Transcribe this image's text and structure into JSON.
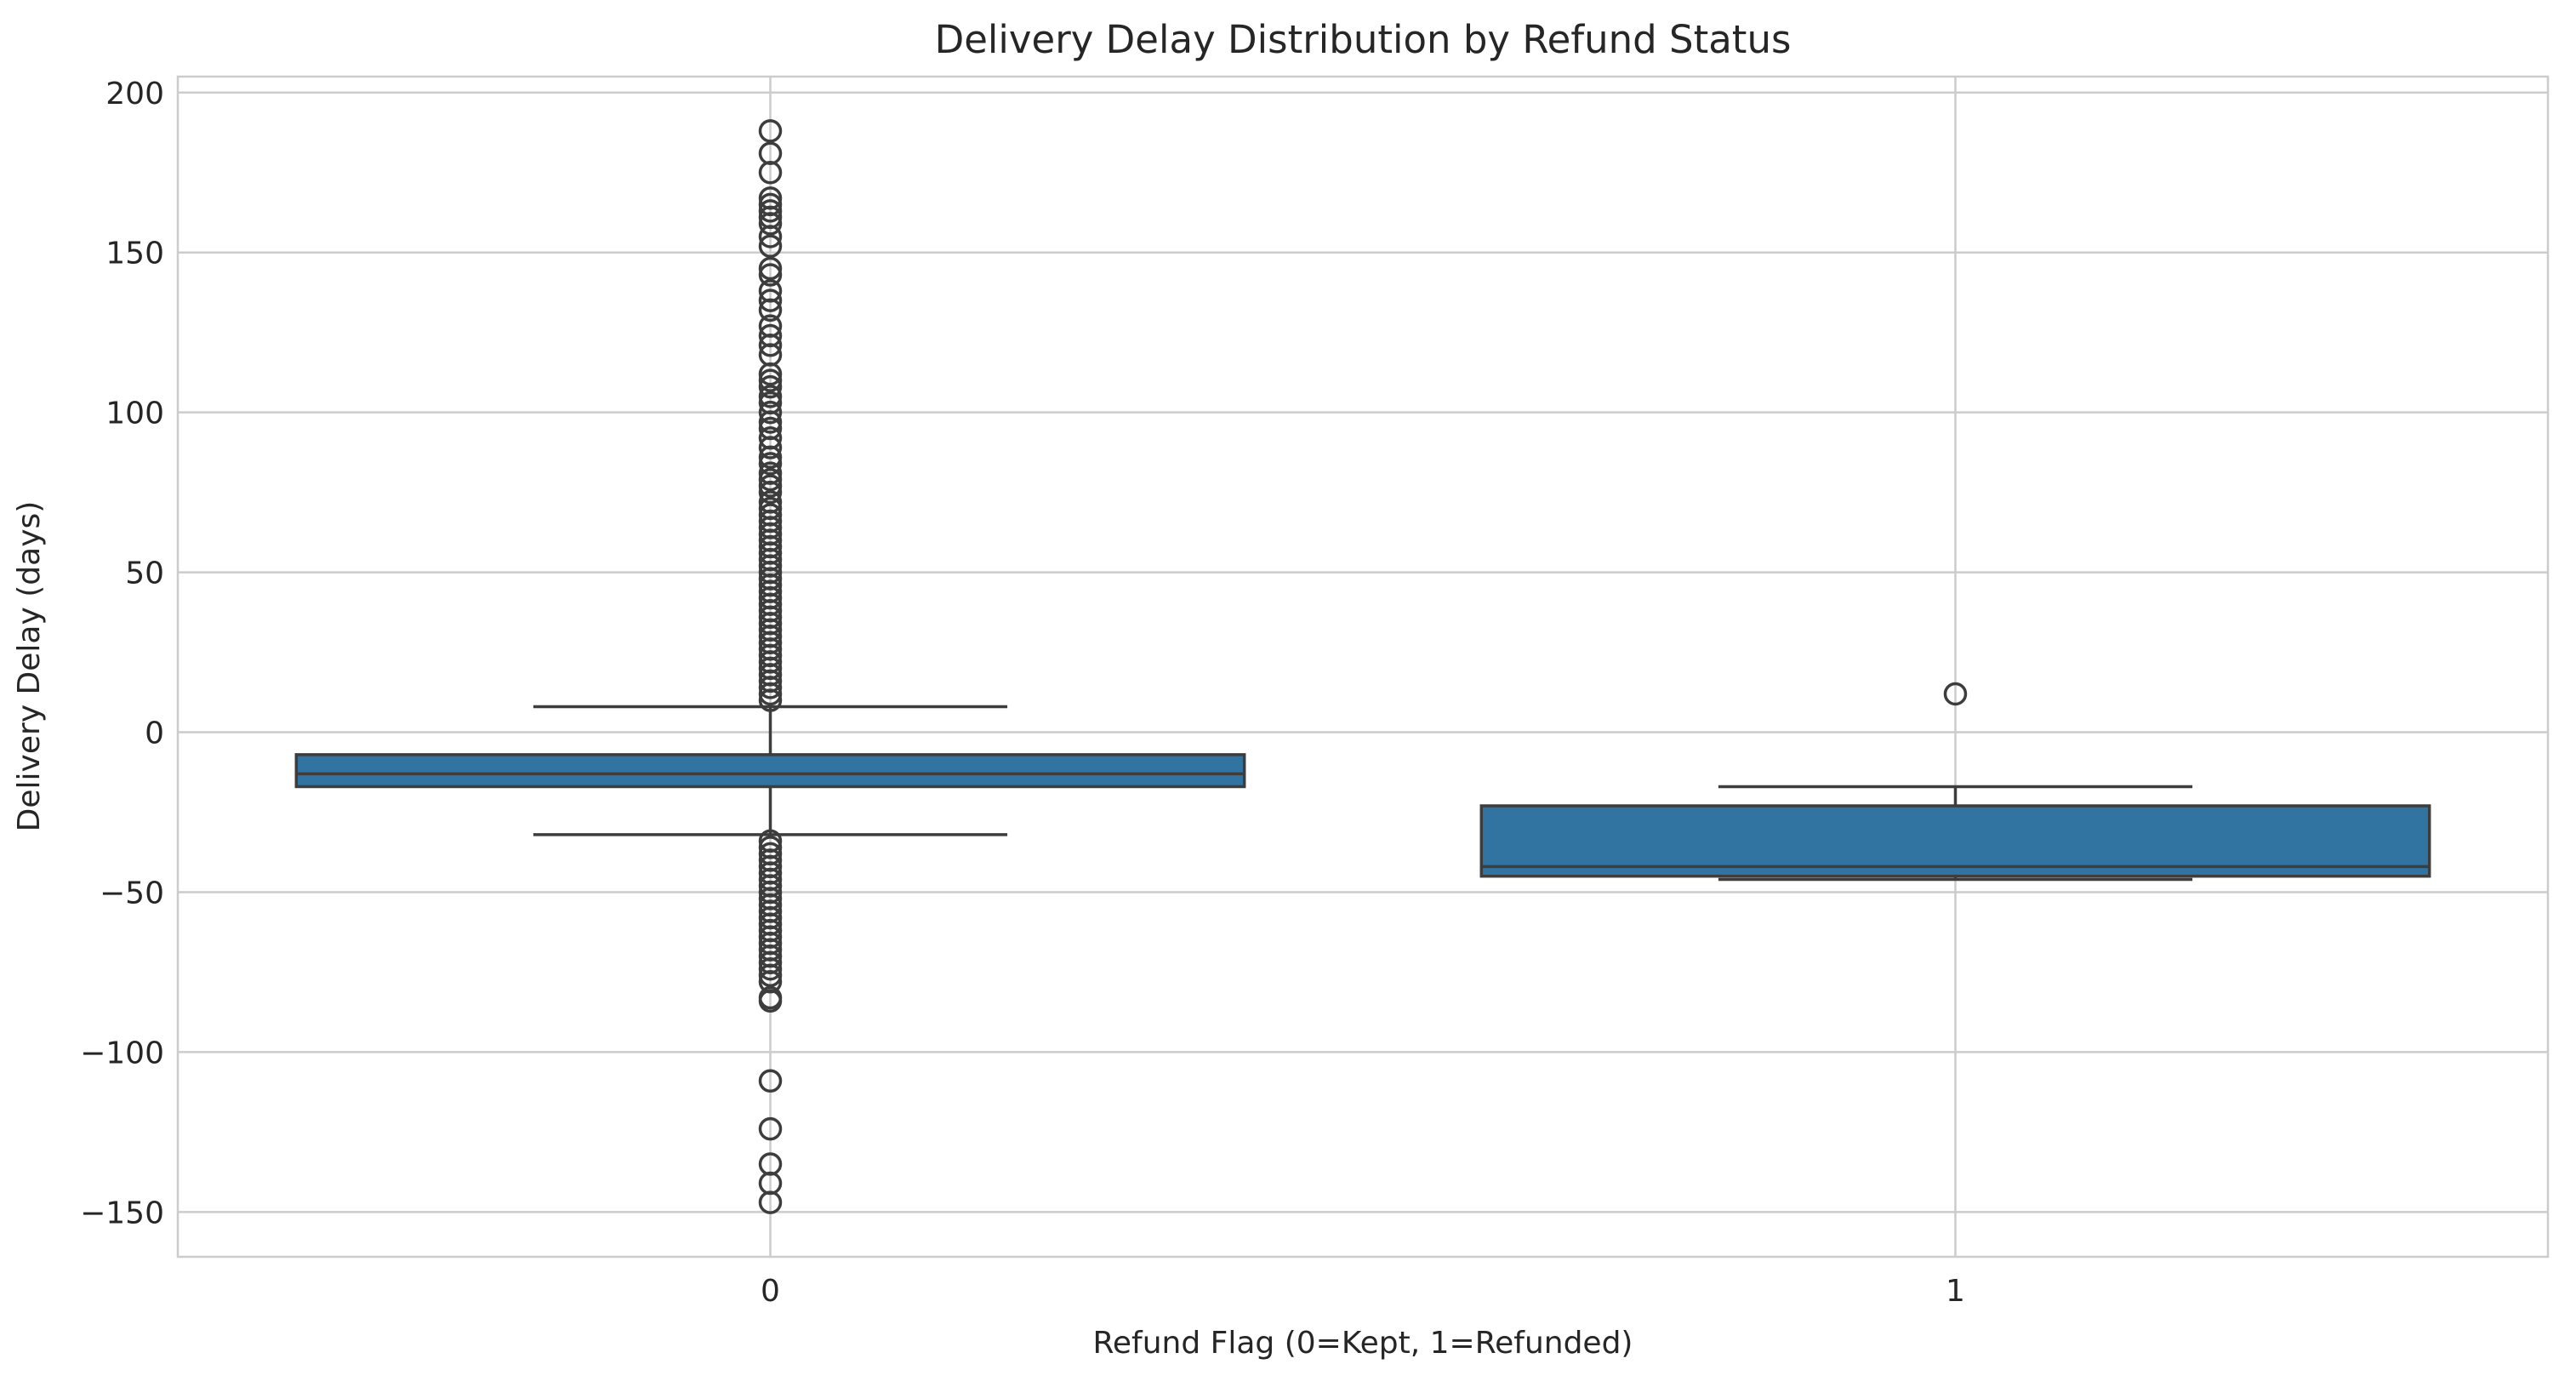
{
  "chart_data": {
    "type": "box",
    "title": "Delivery Delay Distribution by Refund Status",
    "xlabel": "Refund Flag (0=Kept, 1=Refunded)",
    "ylabel": "Delivery Delay (days)",
    "ylim": [
      -164,
      205
    ],
    "yticks": [
      200,
      150,
      100,
      50,
      0,
      -50,
      -100,
      -150
    ],
    "ytick_labels": [
      "200",
      "150",
      "100",
      "50",
      "0",
      "−50",
      "−100",
      "−150"
    ],
    "grid": true,
    "box_color": "#3274a1",
    "categories": [
      "0",
      "1"
    ],
    "boxes": [
      {
        "category": "0",
        "whisker_low": -32,
        "q1": -17,
        "median": -13,
        "q3": -7,
        "whisker_high": 8,
        "fliers": [
          188,
          181,
          175,
          167,
          165,
          163,
          161,
          159,
          155,
          152,
          145,
          143,
          138,
          135,
          132,
          127,
          124,
          121,
          118,
          112,
          110,
          108,
          105,
          103,
          100,
          97,
          95,
          92,
          89,
          86,
          84,
          81,
          79,
          77,
          75,
          72,
          70,
          68,
          66,
          64,
          62,
          60,
          58,
          56,
          54,
          52,
          50,
          48,
          46,
          44,
          42,
          40,
          38,
          36,
          34,
          32,
          30,
          28,
          26,
          24,
          22,
          20,
          18,
          16,
          14,
          12,
          10,
          -34,
          -36,
          -38,
          -40,
          -42,
          -44,
          -46,
          -48,
          -50,
          -52,
          -54,
          -56,
          -58,
          -60,
          -62,
          -64,
          -66,
          -68,
          -70,
          -72,
          -74,
          -76,
          -78,
          -83,
          -84,
          -109,
          -124,
          -135,
          -141,
          -147
        ]
      },
      {
        "category": "1",
        "whisker_low": -46,
        "q1": -45,
        "median": -42,
        "q3": -23,
        "whisker_high": -17,
        "fliers": [
          12
        ]
      }
    ]
  }
}
